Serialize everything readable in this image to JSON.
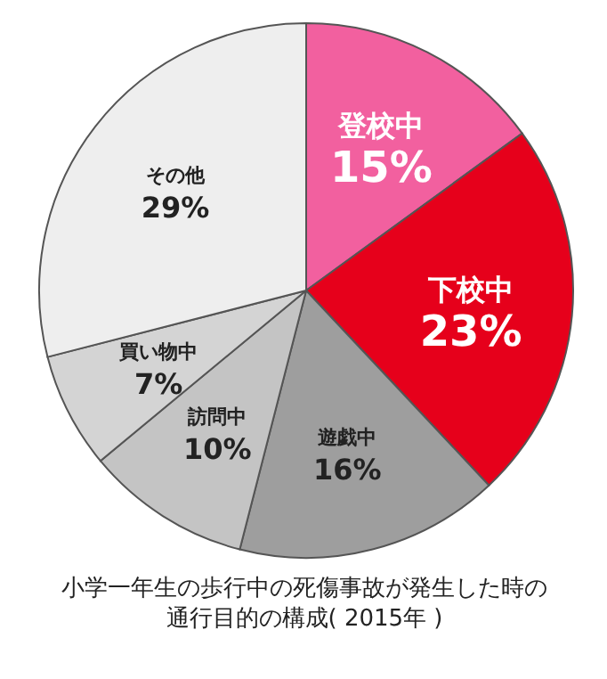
{
  "chart_data": {
    "type": "pie",
    "title": "小学一年生の歩行中の死傷事故が発生した時の通行目的の構成( 2015年 )",
    "categories": [
      "登校中",
      "下校中",
      "遊戯中",
      "訪問中",
      "買い物中",
      "その他"
    ],
    "values": [
      15,
      23,
      16,
      10,
      7,
      29
    ],
    "colors": [
      "#f2609f",
      "#e6001b",
      "#9e9e9e",
      "#c4c4c4",
      "#d4d4d4",
      "#eeeeee"
    ],
    "value_labels": [
      "15%",
      "23%",
      "16%",
      "10%",
      "7%",
      "29%"
    ]
  }
}
